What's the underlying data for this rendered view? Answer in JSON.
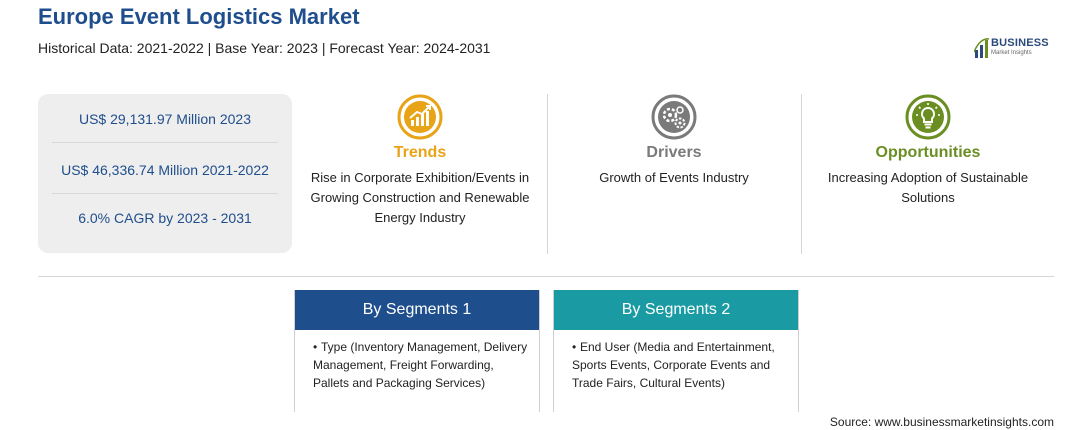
{
  "header": {
    "title": "Europe Event Logistics Market",
    "subtitle": "Historical Data: 2021-2022 | Base Year: 2023 | Forecast Year: 2024-2031"
  },
  "logo": {
    "name": "BUSINESS",
    "tagline": "Market Insights"
  },
  "stats": [
    "US$ 29,131.97 Million 2023",
    "US$ 46,336.74 Million 2021-2022",
    "6.0% CAGR by 2023 - 2031"
  ],
  "columns": [
    {
      "heading": "Trends",
      "text": "Rise in Corporate Exhibition/Events in Growing Construction and Renewable Energy Industry",
      "color": "#e8a317",
      "icon": "growth-chart-icon"
    },
    {
      "heading": "Drivers",
      "text": "Growth of Events Industry",
      "color": "#7a7a7a",
      "icon": "gears-icon"
    },
    {
      "heading": "Opportunities",
      "text": "Increasing Adoption of Sustainable Solutions",
      "color": "#6b8e23",
      "icon": "lightbulb-icon"
    }
  ],
  "segments": [
    {
      "heading": "By Segments 1",
      "bullet": "•",
      "text": "Type (Inventory Management, Delivery Management, Freight Forwarding, Pallets and Packaging Services)",
      "color": "#1f4e8c"
    },
    {
      "heading": "By Segments 2",
      "bullet": "•",
      "text": "End User (Media and Entertainment, Sports Events, Corporate Events and Trade Fairs, Cultural Events)",
      "color": "#1a9ba4"
    }
  ],
  "source": "Source: www.businessmarketinsights.com"
}
